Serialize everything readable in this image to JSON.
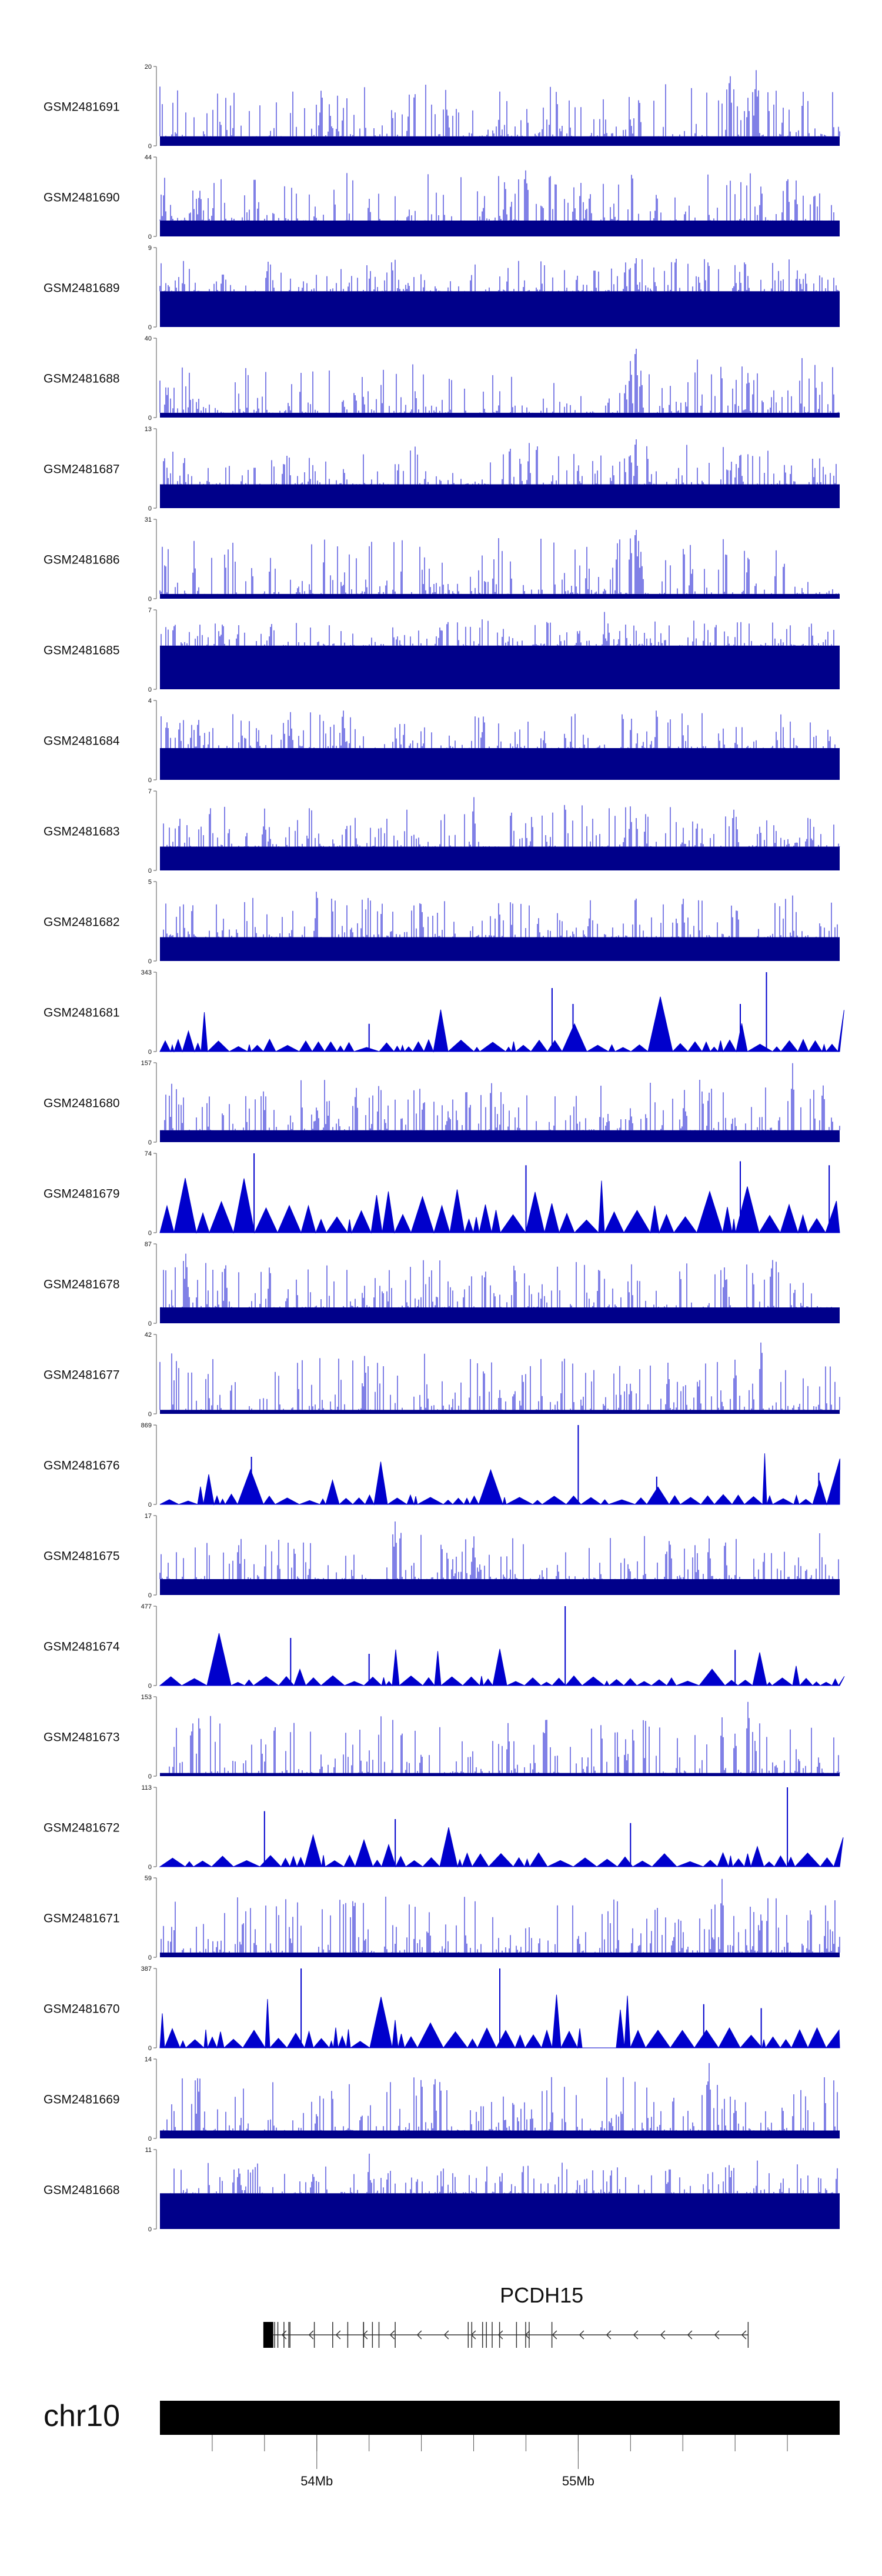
{
  "colors": {
    "signal": "#0000cc",
    "signal_dense": "#00008a",
    "axis": "#555555",
    "chromosome": "#000000",
    "gene": "#333333"
  },
  "chart_data": {
    "type": "area",
    "chromosome": "chr10",
    "axis": {
      "unit": "Mb",
      "range": [
        53.4,
        56.0
      ],
      "labeled_ticks": [
        {
          "value": 54.0,
          "label": "54Mb"
        },
        {
          "value": 55.0,
          "label": "55Mb"
        }
      ],
      "minor_ticks": [
        53.6,
        53.8,
        54.0,
        54.2,
        54.4,
        54.6,
        54.8,
        55.0,
        55.2,
        55.4,
        55.6,
        55.8
      ]
    },
    "gene": {
      "name": "PCDH15",
      "start": 53.8,
      "end": 55.65,
      "strand": "-"
    },
    "series": [
      {
        "name": "GSM2481691",
        "ymax": 20,
        "style": "dense",
        "baseline": 0.12,
        "peaks": [
          [
            55.58,
            1.0
          ],
          [
            55.68,
            1.0
          ],
          [
            55.65,
            0.6
          ],
          [
            54.5,
            0.45
          ],
          [
            55.2,
            0.35
          ]
        ]
      },
      {
        "name": "GSM2481690",
        "ymax": 44,
        "style": "dense",
        "baseline": 0.2,
        "peaks": [
          [
            54.8,
            0.9
          ],
          [
            55.3,
            0.6
          ],
          [
            55.8,
            0.85
          ],
          [
            55.7,
            0.7
          ],
          [
            54.2,
            0.5
          ]
        ]
      },
      {
        "name": "GSM2481689",
        "ymax": 9,
        "style": "dense",
        "baseline": 0.45,
        "peaks": [
          [
            55.22,
            1.0
          ],
          [
            55.18,
            0.9
          ],
          [
            55.6,
            0.8
          ],
          [
            54.1,
            0.55
          ]
        ]
      },
      {
        "name": "GSM2481688",
        "ymax": 40,
        "style": "dense",
        "baseline": 0.06,
        "peaks": [
          [
            55.22,
            1.0
          ],
          [
            55.2,
            0.75
          ],
          [
            55.24,
            0.6
          ],
          [
            55.18,
            0.4
          ],
          [
            55.65,
            0.6
          ],
          [
            54.1,
            0.25
          ]
        ]
      },
      {
        "name": "GSM2481687",
        "ymax": 13,
        "style": "dense",
        "baseline": 0.3,
        "peaks": [
          [
            55.22,
            1.0
          ],
          [
            55.2,
            0.7
          ],
          [
            55.62,
            0.8
          ],
          [
            55.0,
            0.6
          ]
        ]
      },
      {
        "name": "GSM2481686",
        "ymax": 31,
        "style": "dense",
        "baseline": 0.06,
        "peaks": [
          [
            55.22,
            1.0
          ],
          [
            55.2,
            0.8
          ],
          [
            55.24,
            0.6
          ],
          [
            55.65,
            0.55
          ],
          [
            54.1,
            0.2
          ]
        ]
      },
      {
        "name": "GSM2481685",
        "ymax": 7,
        "style": "dense",
        "baseline": 0.55,
        "peaks": [
          [
            54.5,
            1.0
          ],
          [
            55.1,
            1.0
          ],
          [
            53.7,
            0.9
          ]
        ]
      },
      {
        "name": "GSM2481684",
        "ymax": 4,
        "style": "dense",
        "baseline": 0.4,
        "peaks": [
          [
            54.1,
            1.0
          ],
          [
            55.3,
            1.0
          ],
          [
            53.9,
            0.9
          ]
        ]
      },
      {
        "name": "GSM2481683",
        "ymax": 7,
        "style": "dense",
        "baseline": 0.3,
        "peaks": [
          [
            54.6,
            1.0
          ],
          [
            55.2,
            0.85
          ],
          [
            53.8,
            0.8
          ]
        ]
      },
      {
        "name": "GSM2481682",
        "ymax": 5,
        "style": "dense",
        "baseline": 0.3,
        "peaks": [
          [
            54.0,
            1.0
          ],
          [
            54.4,
            0.8
          ],
          [
            55.4,
            0.9
          ]
        ]
      },
      {
        "name": "GSM2481681",
        "ymax": 343,
        "style": "spiky",
        "baseline": 0.12,
        "peaks": [
          [
            54.9,
            0.8
          ],
          [
            54.98,
            0.6
          ],
          [
            55.72,
            1.0
          ],
          [
            55.62,
            0.6
          ],
          [
            54.2,
            0.35
          ]
        ]
      },
      {
        "name": "GSM2481680",
        "ymax": 157,
        "style": "dense",
        "baseline": 0.15,
        "peaks": [
          [
            55.82,
            1.0
          ],
          [
            54.15,
            0.75
          ],
          [
            54.0,
            0.5
          ],
          [
            55.2,
            0.45
          ]
        ]
      },
      {
        "name": "GSM2481679",
        "ymax": 74,
        "style": "spiky",
        "baseline": 0.4,
        "peaks": [
          [
            53.76,
            1.0
          ],
          [
            54.8,
            0.85
          ],
          [
            55.62,
            0.9
          ],
          [
            55.96,
            0.85
          ]
        ]
      },
      {
        "name": "GSM2481678",
        "ymax": 87,
        "style": "dense",
        "baseline": 0.2,
        "peaks": [
          [
            53.5,
            0.95
          ],
          [
            53.65,
            0.85
          ],
          [
            53.82,
            0.8
          ],
          [
            55.08,
            0.8
          ],
          [
            55.56,
            0.75
          ]
        ]
      },
      {
        "name": "GSM2481677",
        "ymax": 42,
        "style": "dense",
        "baseline": 0.05,
        "peaks": [
          [
            55.7,
            1.0
          ],
          [
            55.6,
            0.7
          ],
          [
            55.2,
            0.4
          ],
          [
            54.7,
            0.3
          ]
        ]
      },
      {
        "name": "GSM2481676",
        "ymax": 869,
        "style": "spiky",
        "baseline": 0.1,
        "peaks": [
          [
            55.0,
            1.0
          ],
          [
            53.75,
            0.6
          ],
          [
            55.3,
            0.35
          ],
          [
            55.92,
            0.4
          ]
        ]
      },
      {
        "name": "GSM2481675",
        "ymax": 17,
        "style": "dense",
        "baseline": 0.2,
        "peaks": [
          [
            54.3,
            0.95
          ],
          [
            54.6,
            0.8
          ],
          [
            55.5,
            0.75
          ],
          [
            53.7,
            0.7
          ]
        ]
      },
      {
        "name": "GSM2481674",
        "ymax": 477,
        "style": "spiky",
        "baseline": 0.1,
        "peaks": [
          [
            54.95,
            1.0
          ],
          [
            53.9,
            0.6
          ],
          [
            54.2,
            0.4
          ],
          [
            55.6,
            0.45
          ]
        ]
      },
      {
        "name": "GSM2481673",
        "ymax": 153,
        "style": "dense",
        "baseline": 0.04,
        "peaks": [
          [
            55.65,
            1.0
          ],
          [
            55.55,
            0.75
          ],
          [
            55.6,
            0.55
          ],
          [
            54.4,
            0.3
          ],
          [
            55.18,
            0.35
          ]
        ]
      },
      {
        "name": "GSM2481672",
        "ymax": 113,
        "style": "spiky",
        "baseline": 0.15,
        "peaks": [
          [
            55.8,
            1.0
          ],
          [
            53.8,
            0.7
          ],
          [
            54.3,
            0.6
          ],
          [
            55.2,
            0.55
          ]
        ]
      },
      {
        "name": "GSM2481671",
        "ymax": 59,
        "style": "dense",
        "baseline": 0.06,
        "peaks": [
          [
            55.55,
            1.0
          ],
          [
            55.7,
            0.6
          ],
          [
            55.0,
            0.3
          ],
          [
            53.9,
            0.25
          ]
        ]
      },
      {
        "name": "GSM2481670",
        "ymax": 387,
        "style": "spiky",
        "baseline": 0.2,
        "peaks": [
          [
            53.94,
            1.0
          ],
          [
            54.7,
            1.0
          ],
          [
            55.48,
            0.55
          ],
          [
            55.7,
            0.5
          ]
        ],
        "gap": [
          55.02,
          55.15
        ]
      },
      {
        "name": "GSM2481669",
        "ymax": 14,
        "style": "dense",
        "baseline": 0.1,
        "peaks": [
          [
            55.5,
            1.0
          ],
          [
            55.6,
            0.5
          ],
          [
            54.0,
            0.35
          ],
          [
            54.9,
            0.4
          ]
        ]
      },
      {
        "name": "GSM2481668",
        "ymax": 11,
        "style": "dense",
        "baseline": 0.45,
        "peaks": [
          [
            54.2,
            1.0
          ],
          [
            55.35,
            0.9
          ],
          [
            53.7,
            0.85
          ]
        ]
      }
    ]
  }
}
